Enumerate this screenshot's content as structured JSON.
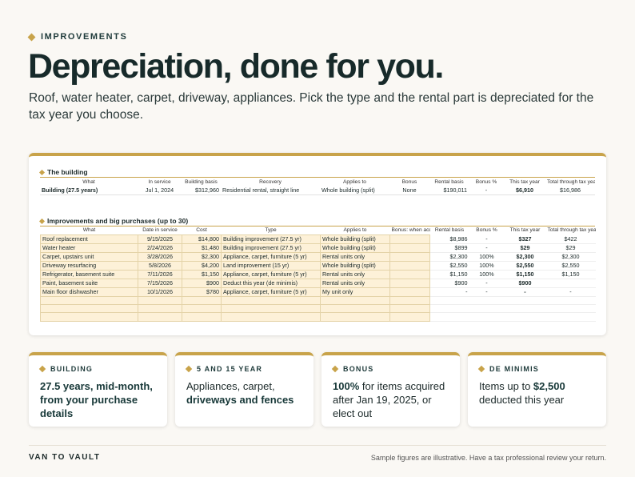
{
  "eyebrow": "IMPROVEMENTS",
  "headline": "Depreciation, done for you.",
  "lede": "Roof, water heater, carpet, driveway, appliances. Pick the type and the rental part is depreciated for the tax year you choose.",
  "sheet": {
    "building": {
      "title": "The building",
      "headers": [
        "What",
        "In service",
        "Building basis",
        "Recovery",
        "Applies to",
        "Bonus",
        "Rental basis",
        "Bonus %",
        "This tax year",
        "Total through tax year"
      ],
      "row": [
        "Building (27.5 years)",
        "Jul 1, 2024",
        "$312,960",
        "Residential rental, straight line",
        "Whole building (split)",
        "None",
        "$190,011",
        "-",
        "$6,910",
        "$16,986"
      ]
    },
    "improvements": {
      "title": "Improvements and big purchases (up to 30)",
      "headers": [
        "What",
        "Date in service",
        "Cost",
        "Type",
        "Applies to",
        "Bonus: when acquired",
        "Rental basis",
        "Bonus %",
        "This tax year",
        "Total through tax year"
      ],
      "rows": [
        [
          "Roof replacement",
          "9/15/2025",
          "$14,800",
          "Building improvement (27.5 yr)",
          "Whole building (split)",
          "",
          "$8,986",
          "-",
          "$327",
          "$422"
        ],
        [
          "Water heater",
          "2/24/2026",
          "$1,480",
          "Building improvement (27.5 yr)",
          "Whole building (split)",
          "",
          "$899",
          "-",
          "$29",
          "$29"
        ],
        [
          "Carpet, upstairs unit",
          "3/28/2026",
          "$2,300",
          "Appliance, carpet, furniture (5 yr)",
          "Rental units only",
          "",
          "$2,300",
          "100%",
          "$2,300",
          "$2,300"
        ],
        [
          "Driveway resurfacing",
          "5/8/2026",
          "$4,200",
          "Land improvement (15 yr)",
          "Whole building (split)",
          "",
          "$2,550",
          "100%",
          "$2,550",
          "$2,550"
        ],
        [
          "Refrigerator, basement suite",
          "7/11/2026",
          "$1,150",
          "Appliance, carpet, furniture (5 yr)",
          "Rental units only",
          "",
          "$1,150",
          "100%",
          "$1,150",
          "$1,150"
        ],
        [
          "Paint, basement suite",
          "7/15/2026",
          "$900",
          "Deduct this year (de minimis)",
          "Rental units only",
          "",
          "$900",
          "-",
          "$900",
          ""
        ],
        [
          "Main floor dishwasher",
          "10/1/2026",
          "$780",
          "Appliance, carpet, furniture (5 yr)",
          "My unit only",
          "",
          "-",
          "-",
          "-",
          "-"
        ]
      ],
      "blank_rows": 3
    }
  },
  "cards": [
    {
      "kicker": "BUILDING",
      "emphasis": "27.5 years, mid-month, from your purchase details",
      "rest": ""
    },
    {
      "kicker": "5 AND 15 YEAR",
      "lead": "Appliances, carpet, ",
      "emphasis": "driveways and fences"
    },
    {
      "kicker": "BONUS",
      "emphasis": "100%",
      "rest": " for items acquired after Jan 19, 2025, or elect out"
    },
    {
      "kicker": "DE MINIMIS",
      "lead": "Items up to ",
      "emphasis": "$2,500",
      "rest": " deducted this year"
    }
  ],
  "footer": {
    "brand": "VAN TO VAULT",
    "disclaimer": "Sample figures are illustrative. Have a tax professional review your return."
  },
  "colors": {
    "accent": "#c8a34a",
    "ink": "#172a2a",
    "input_fill": "#fdf1d8",
    "background": "#faf8f4"
  }
}
